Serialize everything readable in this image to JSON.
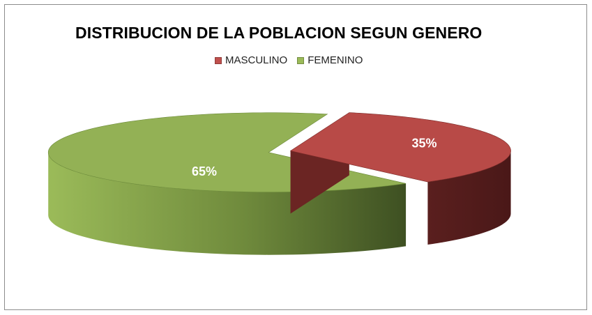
{
  "chart_data": {
    "type": "pie",
    "title": "DISTRIBUCION DE LA POBLACION SEGUN GENERO",
    "categories": [
      "MASCULINO",
      "FEMENINO"
    ],
    "values": [
      35,
      65
    ],
    "value_labels": [
      "35%",
      "65%"
    ],
    "colors": [
      "#c0504d",
      "#9bbb59"
    ],
    "legend_position": "top",
    "style": "3d-exploded"
  }
}
